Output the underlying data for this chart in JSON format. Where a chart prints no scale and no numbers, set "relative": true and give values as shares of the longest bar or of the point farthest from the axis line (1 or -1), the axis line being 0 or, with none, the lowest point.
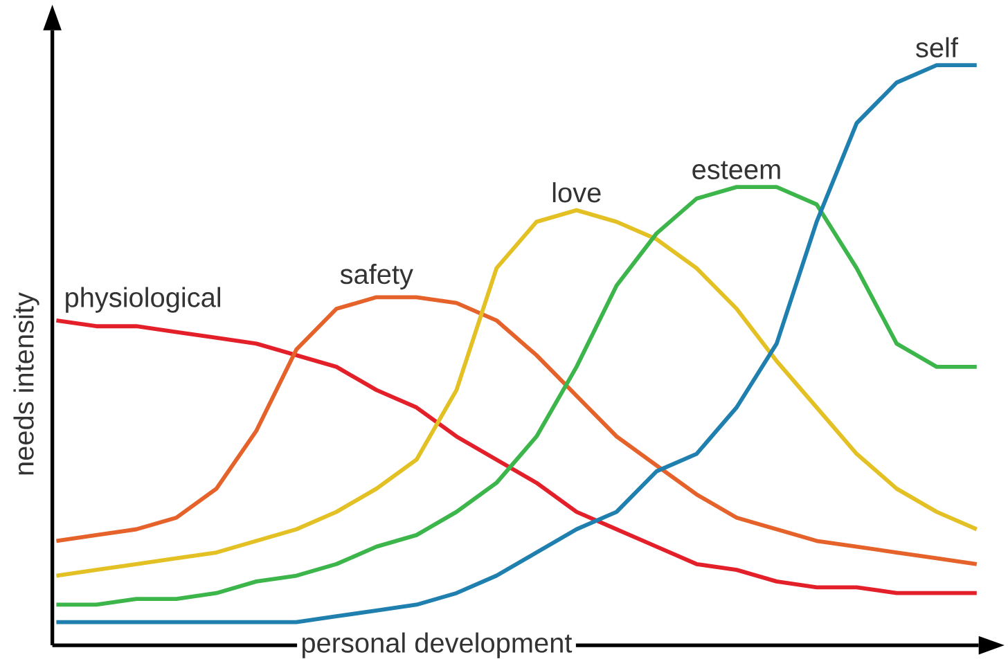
{
  "chart_data": {
    "type": "line",
    "relative": true,
    "xlabel": "personal development",
    "ylabel": "needs intensity",
    "categories": [
      null,
      null,
      null,
      null,
      null,
      null,
      null,
      null,
      null,
      null,
      null,
      null,
      null,
      null,
      null,
      null,
      null,
      null,
      null,
      null,
      null,
      null,
      null,
      null
    ],
    "series": [
      {
        "name": "physiological",
        "color": "#e3202a",
        "values": [
          0.56,
          0.55,
          0.55,
          0.54,
          0.53,
          0.52,
          0.5,
          0.48,
          0.44,
          0.41,
          0.36,
          0.32,
          0.28,
          0.23,
          0.2,
          0.17,
          0.14,
          0.13,
          0.11,
          0.1,
          0.1,
          0.09,
          0.09,
          0.09
        ]
      },
      {
        "name": "safety",
        "color": "#e5622a",
        "values": [
          0.18,
          0.19,
          0.2,
          0.22,
          0.27,
          0.37,
          0.51,
          0.58,
          0.6,
          0.6,
          0.59,
          0.56,
          0.5,
          0.43,
          0.36,
          0.31,
          0.26,
          0.22,
          0.2,
          0.18,
          0.17,
          0.16,
          0.15,
          0.14
        ]
      },
      {
        "name": "love",
        "color": "#e3c023",
        "values": [
          0.12,
          0.13,
          0.14,
          0.15,
          0.16,
          0.18,
          0.2,
          0.23,
          0.27,
          0.32,
          0.44,
          0.65,
          0.73,
          0.75,
          0.73,
          0.7,
          0.65,
          0.58,
          0.49,
          0.41,
          0.33,
          0.27,
          0.23,
          0.2
        ]
      },
      {
        "name": "esteem",
        "color": "#3cb54a",
        "values": [
          0.07,
          0.07,
          0.08,
          0.08,
          0.09,
          0.11,
          0.12,
          0.14,
          0.17,
          0.19,
          0.23,
          0.28,
          0.36,
          0.48,
          0.62,
          0.71,
          0.77,
          0.79,
          0.79,
          0.76,
          0.65,
          0.52,
          0.48,
          0.48
        ]
      },
      {
        "name": "self",
        "color": "#1f7fae",
        "values": [
          0.04,
          0.04,
          0.04,
          0.04,
          0.04,
          0.04,
          0.04,
          0.05,
          0.06,
          0.07,
          0.09,
          0.12,
          0.16,
          0.2,
          0.23,
          0.3,
          0.33,
          0.41,
          0.52,
          0.73,
          0.9,
          0.97,
          1,
          1
        ]
      }
    ]
  }
}
